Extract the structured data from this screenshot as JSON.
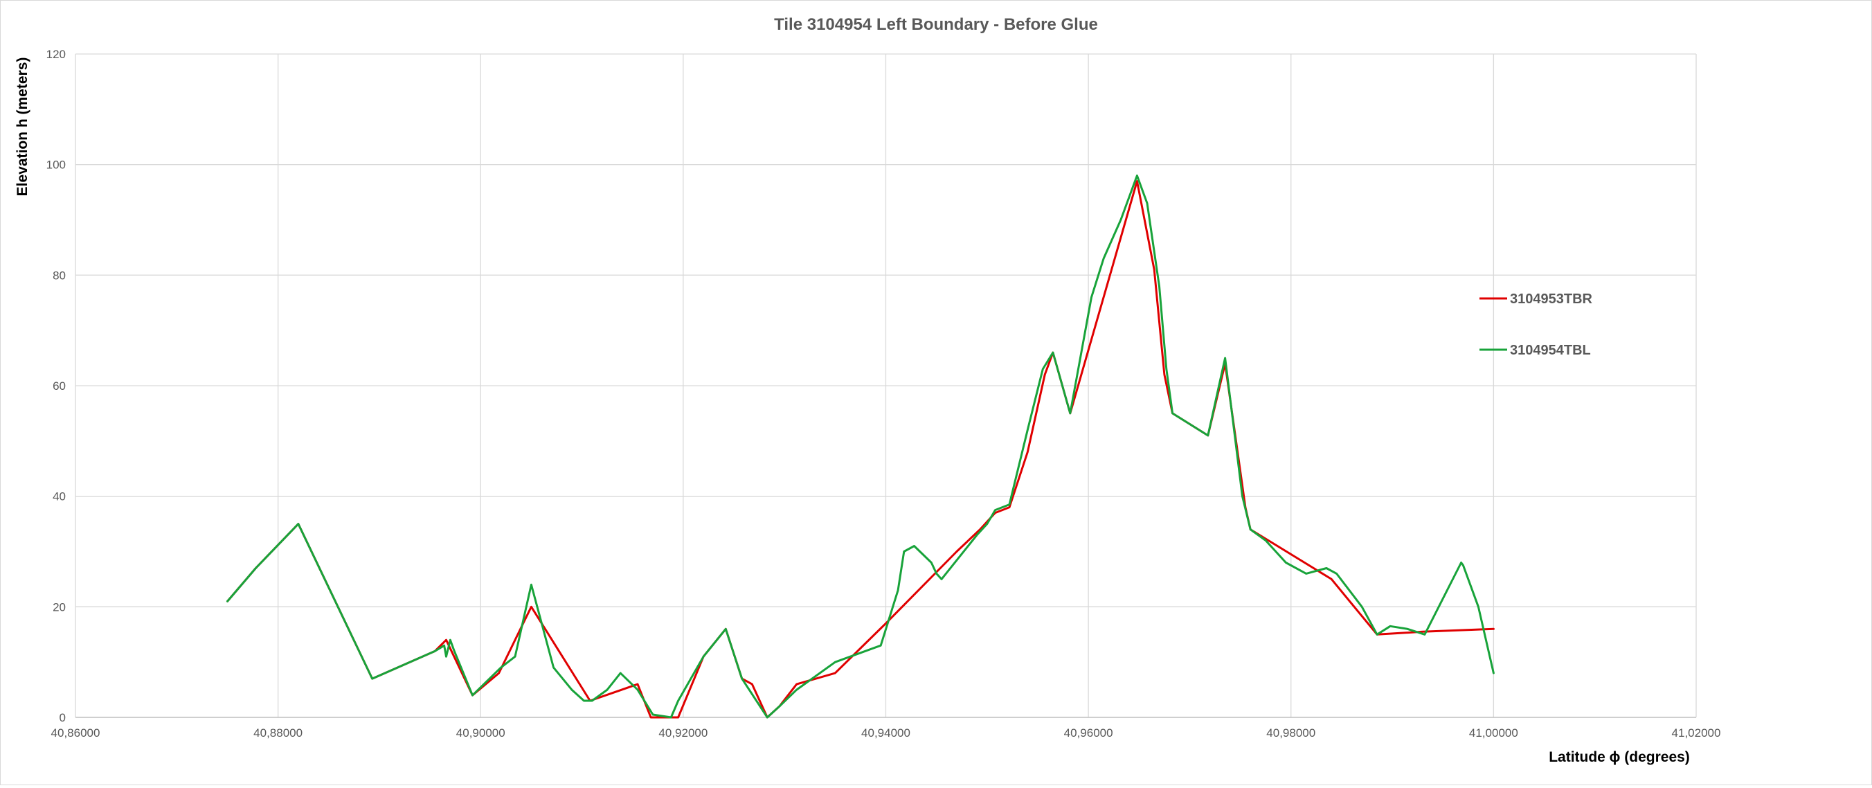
{
  "chart_data": {
    "type": "line",
    "title": "Tile 3104954 Left  Boundary - Before Glue",
    "xlabel": "Latitude ϕ (degrees)",
    "ylabel": "Elevation h  (meters)",
    "xlim": [
      40.86,
      41.02
    ],
    "ylim": [
      0,
      120
    ],
    "xticks": [
      40.86,
      40.88,
      40.9,
      40.92,
      40.94,
      40.96,
      40.98,
      41.0,
      41.02
    ],
    "xtick_labels": [
      "40,86000",
      "40,88000",
      "40,90000",
      "40,92000",
      "40,94000",
      "40,96000",
      "40,98000",
      "41,00000",
      "41,02000"
    ],
    "yticks": [
      0,
      20,
      40,
      60,
      80,
      100,
      120
    ],
    "ytick_labels": [
      "0",
      "20",
      "40",
      "60",
      "80",
      "100",
      "120"
    ],
    "grid": true,
    "legend_position": "right",
    "series": [
      {
        "name": "3104953TBR",
        "color": "#e00000",
        "points": [
          [
            40.875,
            21
          ],
          [
            40.8778,
            27
          ],
          [
            40.882,
            35
          ],
          [
            40.8893,
            7
          ],
          [
            40.8955,
            12
          ],
          [
            40.8966,
            14
          ],
          [
            40.8992,
            4
          ],
          [
            40.9018,
            8
          ],
          [
            40.905,
            20
          ],
          [
            40.9108,
            3
          ],
          [
            40.9155,
            6
          ],
          [
            40.9168,
            0
          ],
          [
            40.9195,
            0
          ],
          [
            40.922,
            11
          ],
          [
            40.9242,
            16
          ],
          [
            40.9258,
            7
          ],
          [
            40.9268,
            6
          ],
          [
            40.9283,
            0
          ],
          [
            40.9295,
            2
          ],
          [
            40.9312,
            6
          ],
          [
            40.935,
            8
          ],
          [
            40.94,
            17
          ],
          [
            40.947,
            30
          ],
          [
            40.9493,
            34
          ],
          [
            40.9508,
            37
          ],
          [
            40.9522,
            38
          ],
          [
            40.954,
            48
          ],
          [
            40.9557,
            62
          ],
          [
            40.9565,
            66
          ],
          [
            40.9582,
            55
          ],
          [
            40.9648,
            97
          ],
          [
            40.9665,
            81
          ],
          [
            40.9675,
            62
          ],
          [
            40.9683,
            55
          ],
          [
            40.9718,
            51
          ],
          [
            40.9735,
            64
          ],
          [
            40.9755,
            38
          ],
          [
            40.976,
            34
          ],
          [
            40.984,
            25
          ],
          [
            40.9858,
            21
          ],
          [
            40.9885,
            15
          ],
          [
            40.993,
            15.5
          ],
          [
            41.0,
            16
          ]
        ]
      },
      {
        "name": "3104954TBL",
        "color": "#18a33a",
        "points": [
          [
            40.875,
            21
          ],
          [
            40.8778,
            27
          ],
          [
            40.882,
            35
          ],
          [
            40.8893,
            7
          ],
          [
            40.8955,
            12
          ],
          [
            40.8964,
            13
          ],
          [
            40.8966,
            11
          ],
          [
            40.897,
            14
          ],
          [
            40.8974,
            12
          ],
          [
            40.8992,
            4
          ],
          [
            40.902,
            9
          ],
          [
            40.9034,
            11
          ],
          [
            40.905,
            24
          ],
          [
            40.9072,
            9
          ],
          [
            40.909,
            5
          ],
          [
            40.9102,
            3
          ],
          [
            40.911,
            3
          ],
          [
            40.9125,
            5
          ],
          [
            40.9138,
            8
          ],
          [
            40.9155,
            5
          ],
          [
            40.917,
            0.5
          ],
          [
            40.9188,
            0
          ],
          [
            40.9195,
            3
          ],
          [
            40.922,
            11
          ],
          [
            40.9242,
            16
          ],
          [
            40.9258,
            7
          ],
          [
            40.9283,
            0
          ],
          [
            40.9295,
            2
          ],
          [
            40.9312,
            5
          ],
          [
            40.935,
            10
          ],
          [
            40.938,
            12
          ],
          [
            40.9395,
            13
          ],
          [
            40.9412,
            23
          ],
          [
            40.9418,
            30
          ],
          [
            40.9428,
            31
          ],
          [
            40.9445,
            28
          ],
          [
            40.945,
            26
          ],
          [
            40.9455,
            25
          ],
          [
            40.949,
            33
          ],
          [
            40.95,
            35
          ],
          [
            40.9508,
            37.5
          ],
          [
            40.9522,
            38.5
          ],
          [
            40.954,
            52
          ],
          [
            40.9555,
            63
          ],
          [
            40.9565,
            66
          ],
          [
            40.9582,
            55
          ],
          [
            40.9603,
            76
          ],
          [
            40.9615,
            83
          ],
          [
            40.9632,
            90
          ],
          [
            40.9648,
            98
          ],
          [
            40.9658,
            93
          ],
          [
            40.967,
            78
          ],
          [
            40.9677,
            63
          ],
          [
            40.9683,
            55
          ],
          [
            40.9718,
            51
          ],
          [
            40.9735,
            65
          ],
          [
            40.9752,
            40
          ],
          [
            40.976,
            34
          ],
          [
            40.9775,
            32
          ],
          [
            40.9795,
            28
          ],
          [
            40.9815,
            26
          ],
          [
            40.9835,
            27
          ],
          [
            40.9845,
            26
          ],
          [
            40.987,
            20
          ],
          [
            40.9885,
            15
          ],
          [
            40.9898,
            16.5
          ],
          [
            40.9915,
            16
          ],
          [
            40.9932,
            15
          ],
          [
            40.9968,
            28
          ],
          [
            40.997,
            27.5
          ],
          [
            40.9985,
            20
          ],
          [
            41.0,
            8
          ]
        ]
      }
    ]
  }
}
